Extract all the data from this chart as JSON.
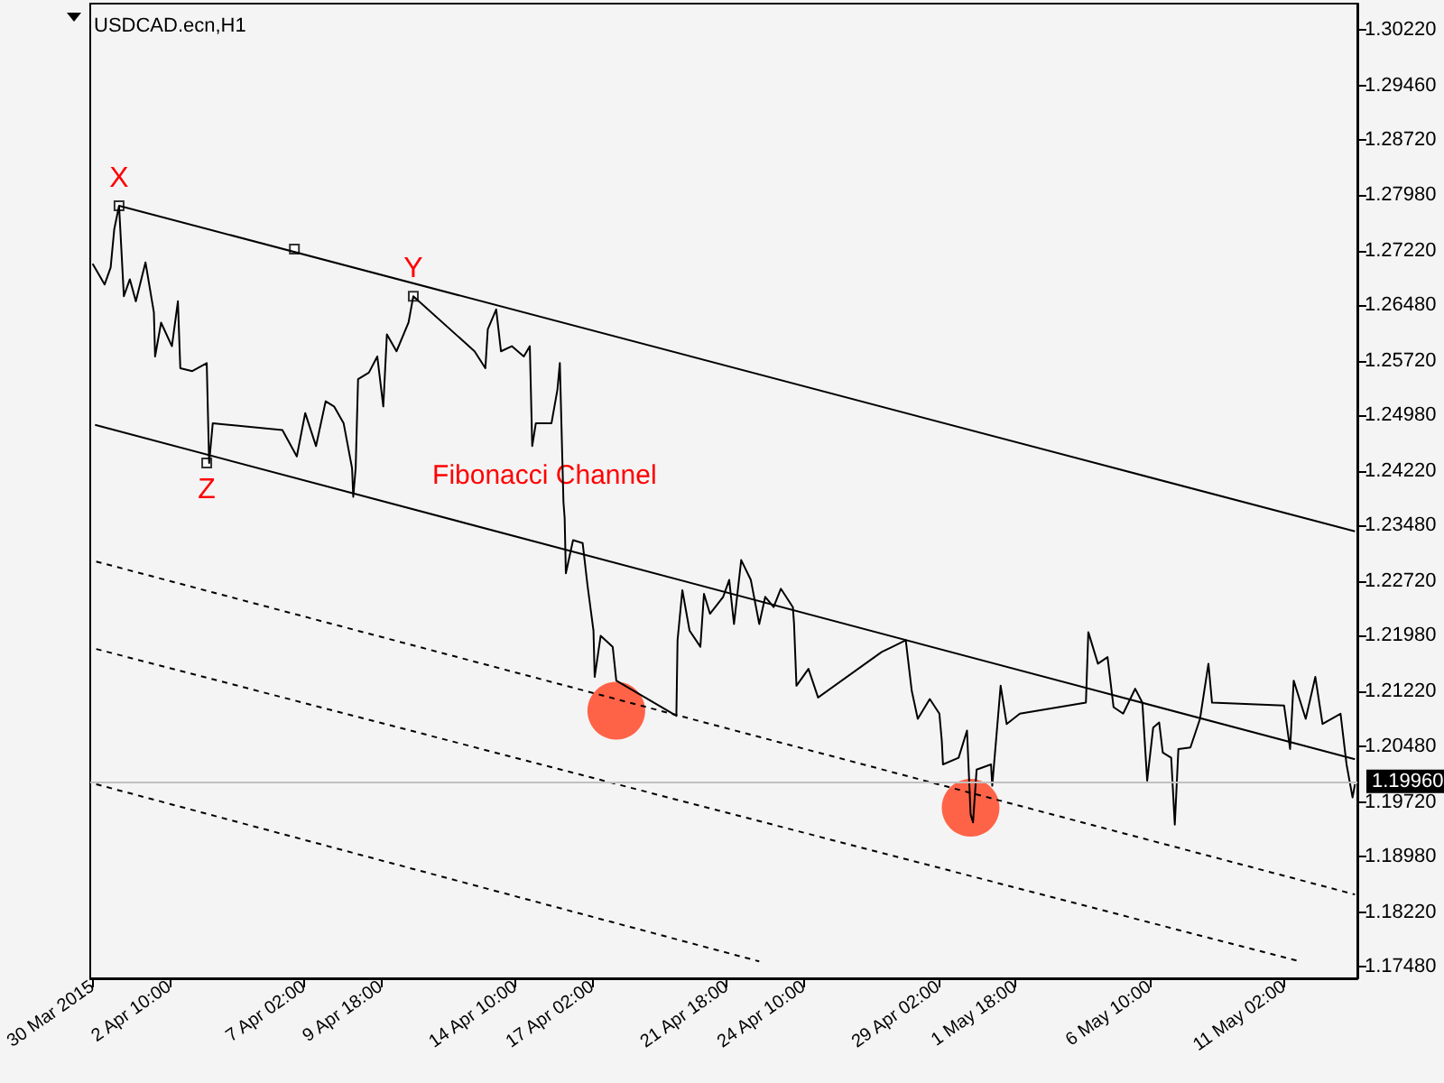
{
  "chart_data": {
    "type": "line",
    "title": "USDCAD.ecn,H1",
    "marker": "none",
    "grid": false,
    "xlim": [
      "2015-03-30T16:00",
      "2015-05-13T15:00"
    ],
    "xticks": [
      {
        "value": "2015-03-30T18:00",
        "label": "30 Mar 2015"
      },
      {
        "value": "2015-04-02T10:00",
        "label": "2 Apr 10:00"
      },
      {
        "value": "2015-04-07T02:00",
        "label": "7 Apr 02:00"
      },
      {
        "value": "2015-04-09T18:00",
        "label": "9 Apr 18:00"
      },
      {
        "value": "2015-04-14T10:00",
        "label": "14 Apr 10:00"
      },
      {
        "value": "2015-04-17T02:00",
        "label": "17 Apr 02:00"
      },
      {
        "value": "2015-04-21T18:00",
        "label": "21 Apr 18:00"
      },
      {
        "value": "2015-04-24T10:00",
        "label": "24 Apr 10:00"
      },
      {
        "value": "2015-04-29T02:00",
        "label": "29 Apr 02:00"
      },
      {
        "value": "2015-05-01T18:00",
        "label": "1 May 18:00"
      },
      {
        "value": "2015-05-06T10:00",
        "label": "6 May 10:00"
      },
      {
        "value": "2015-05-11T02:00",
        "label": "11 May 02:00"
      }
    ],
    "ylim": [
      1.1732,
      1.3058
    ],
    "yticks": [
      {
        "value": 1.3022,
        "label": "1.30220"
      },
      {
        "value": 1.2946,
        "label": "1.29460"
      },
      {
        "value": 1.2872,
        "label": "1.28720"
      },
      {
        "value": 1.2798,
        "label": "1.27980"
      },
      {
        "value": 1.2722,
        "label": "1.27220"
      },
      {
        "value": 1.2648,
        "label": "1.26480"
      },
      {
        "value": 1.2572,
        "label": "1.25720"
      },
      {
        "value": 1.2498,
        "label": "1.24980"
      },
      {
        "value": 1.2422,
        "label": "1.24220"
      },
      {
        "value": 1.2348,
        "label": "1.23480"
      },
      {
        "value": 1.2272,
        "label": "1.22720"
      },
      {
        "value": 1.2198,
        "label": "1.21980"
      },
      {
        "value": 1.2122,
        "label": "1.21220"
      },
      {
        "value": 1.2048,
        "label": "1.20480"
      },
      {
        "value": 1.1972,
        "label": "1.19720"
      },
      {
        "value": 1.1898,
        "label": "1.18980"
      },
      {
        "value": 1.1822,
        "label": "1.18220"
      },
      {
        "value": 1.1748,
        "label": "1.17480"
      }
    ],
    "ref_lines": [
      {
        "axis": "y",
        "value": 1.1996,
        "label": "1.19960",
        "color": "#c0c0c0"
      }
    ],
    "annotations": [
      {
        "text": "X",
        "x": "2015-03-31T16:00",
        "y": 1.2783
      },
      {
        "text": "Y",
        "x": "2015-04-10T21:00",
        "y": 1.266
      },
      {
        "text": "Z",
        "x": "2015-04-03T17:00",
        "y": 1.2433
      },
      "Fibonacci Channel"
    ],
    "series": [
      {
        "type": "line",
        "color": "#000000",
        "x": [
          "2015-03-30T18:00",
          "2015-03-31T04:00",
          "2015-03-31T09:00",
          "2015-03-31T12:00",
          "2015-03-31T16:00",
          "2015-03-31T20:00",
          "2015-04-01T01:00",
          "2015-04-01T06:00",
          "2015-04-01T14:00",
          "2015-04-01T21:00",
          "2015-04-01T22:00",
          "2015-04-02T03:00",
          "2015-04-02T12:00",
          "2015-04-02T17:00",
          "2015-04-02T19:00",
          "2015-04-03T05:00",
          "2015-04-03T17:00",
          "2015-04-03T19:00",
          "2015-04-03T22:00",
          "2015-04-06T08:00",
          "2015-04-06T20:00",
          "2015-04-07T03:00",
          "2015-04-07T12:00",
          "2015-04-07T20:00",
          "2015-04-08T03:00",
          "2015-04-08T11:00",
          "2015-04-08T18:00",
          "2015-04-08T19:00",
          "2015-04-08T21:00",
          "2015-04-08T23:00",
          "2015-04-09T08:00",
          "2015-04-09T15:00",
          "2015-04-09T20:00",
          "2015-04-09T23:00",
          "2015-04-10T07:00",
          "2015-04-10T17:00",
          "2015-04-10T21:00",
          "2015-04-13T00:00",
          "2015-04-13T09:00",
          "2015-04-13T11:00",
          "2015-04-13T18:00",
          "2015-04-13T22:00",
          "2015-04-14T07:00",
          "2015-04-14T17:00",
          "2015-04-14T22:00",
          "2015-04-15T00:00",
          "2015-04-15T03:00",
          "2015-04-15T16:00",
          "2015-04-15T21:00",
          "2015-04-15T23:00",
          "2015-04-16T02:00",
          "2015-04-16T03:00",
          "2015-04-16T04:00",
          "2015-04-16T10:00",
          "2015-04-16T18:00",
          "2015-04-16T22:00",
          "2015-04-17T03:00",
          "2015-04-17T04:00",
          "2015-04-17T09:00",
          "2015-04-17T19:00",
          "2015-04-17T22:00",
          "2015-04-20T00:00",
          "2015-04-20T01:00",
          "2015-04-20T05:00",
          "2015-04-20T11:00",
          "2015-04-20T20:00",
          "2015-04-20T23:00",
          "2015-04-21T04:00",
          "2015-04-21T15:00",
          "2015-04-21T20:00",
          "2015-04-22T00:00",
          "2015-04-22T06:00",
          "2015-04-22T14:00",
          "2015-04-22T21:00",
          "2015-04-23T02:00",
          "2015-04-23T09:00",
          "2015-04-23T15:00",
          "2015-04-24T01:00",
          "2015-04-24T02:00",
          "2015-04-24T04:00",
          "2015-04-24T14:00",
          "2015-04-24T22:00",
          "2015-04-27T03:00",
          "2015-04-27T12:00",
          "2015-04-27T23:00",
          "2015-04-28T04:00",
          "2015-04-28T09:00",
          "2015-04-28T19:00",
          "2015-04-29T03:00",
          "2015-04-29T05:00",
          "2015-04-29T06:00",
          "2015-04-29T19:00",
          "2015-04-30T02:00",
          "2015-04-30T05:00",
          "2015-04-30T07:00",
          "2015-04-30T10:00",
          "2015-04-30T22:00",
          "2015-04-30T23:00",
          "2015-05-01T06:00",
          "2015-05-01T11:00",
          "2015-05-01T22:00",
          "2015-05-04T05:00",
          "2015-05-04T07:00",
          "2015-05-04T15:00",
          "2015-05-04T23:00",
          "2015-05-05T04:00",
          "2015-05-05T12:00",
          "2015-05-05T22:00",
          "2015-05-06T04:00",
          "2015-05-06T08:00",
          "2015-05-06T13:00",
          "2015-05-06T18:00",
          "2015-05-06T21:00",
          "2015-05-07T04:00",
          "2015-05-07T07:00",
          "2015-05-07T10:00",
          "2015-05-07T20:00",
          "2015-05-08T04:00",
          "2015-05-08T11:00",
          "2015-05-08T14:00",
          "2015-05-11T02:00",
          "2015-05-11T07:00",
          "2015-05-11T10:00",
          "2015-05-11T20:00",
          "2015-05-12T04:00",
          "2015-05-12T10:00",
          "2015-05-13T01:00",
          "2015-05-13T06:00",
          "2015-05-13T11:00",
          "2015-05-13T13:00"
        ],
        "values": [
          1.2704,
          1.2676,
          1.2699,
          1.2751,
          1.2783,
          1.266,
          1.2683,
          1.2653,
          1.2706,
          1.2638,
          1.2578,
          1.2624,
          1.2592,
          1.2653,
          1.2562,
          1.2558,
          1.2569,
          1.2433,
          1.2487,
          1.2478,
          1.2442,
          1.2501,
          1.2456,
          1.2517,
          1.251,
          1.2487,
          1.2426,
          1.2387,
          1.2426,
          1.2547,
          1.2556,
          1.2578,
          1.251,
          1.2608,
          1.2585,
          1.2624,
          1.266,
          1.2585,
          1.2562,
          1.2615,
          1.2642,
          1.2585,
          1.2592,
          1.2578,
          1.2592,
          1.2456,
          1.2487,
          1.2487,
          1.2533,
          1.2569,
          1.238,
          1.2358,
          1.2283,
          1.2328,
          1.2324,
          1.2267,
          1.2205,
          1.2142,
          1.2198,
          1.2183,
          1.2137,
          1.2089,
          1.2192,
          1.226,
          1.2205,
          1.2183,
          1.2255,
          1.2228,
          1.2251,
          1.2274,
          1.2214,
          1.2301,
          1.2274,
          1.2214,
          1.2251,
          1.2237,
          1.2262,
          1.2237,
          1.2214,
          1.213,
          1.2153,
          1.2114,
          1.2176,
          1.2183,
          1.2192,
          1.2123,
          1.2085,
          1.2112,
          1.2092,
          1.2055,
          1.2023,
          1.2032,
          1.2069,
          1.1955,
          1.1944,
          1.2016,
          1.2023,
          1.1994,
          1.213,
          1.2078,
          1.2092,
          1.2107,
          1.2203,
          1.216,
          1.2169,
          1.2101,
          1.2092,
          1.2126,
          1.2107,
          1.2001,
          1.2073,
          1.208,
          1.2039,
          1.2032,
          1.1941,
          1.2044,
          1.2046,
          1.2085,
          1.216,
          1.2107,
          1.2103,
          1.2044,
          1.2137,
          1.2085,
          1.2142,
          1.2078,
          1.2092,
          1.2023,
          1.1978,
          1.1996
        ]
      },
      {
        "type": "line",
        "color": "#000000",
        "line_style": "solid",
        "x": [
          "2015-03-31T16:00",
          "2015-05-13T13:00"
        ],
        "values": [
          1.2783,
          1.234
        ]
      },
      {
        "type": "line",
        "color": "#000000",
        "line_style": "solid",
        "x": [
          "2015-03-30T20:00",
          "2015-05-13T13:00"
        ],
        "values": [
          1.2485,
          1.203
        ]
      },
      {
        "type": "line",
        "color": "#000000",
        "line_style": "dashed",
        "x": [
          "2015-03-30T21:00",
          "2015-05-13T13:00"
        ],
        "values": [
          1.2299,
          1.1846
        ]
      },
      {
        "type": "line",
        "color": "#000000",
        "line_style": "dashed",
        "x": [
          "2015-03-30T21:00",
          "2015-05-11T15:00"
        ],
        "values": [
          1.218,
          1.1755
        ]
      },
      {
        "type": "line",
        "color": "#000000",
        "line_style": "dashed",
        "x": [
          "2015-03-30T21:00",
          "2015-04-22T21:00"
        ],
        "values": [
          1.1996,
          1.1755
        ]
      },
      {
        "type": "scatter",
        "color": "#000000",
        "marker": "square",
        "x": [
          "2015-03-31T16:00",
          "2015-04-06T18:00",
          "2015-04-10T21:00",
          "2015-04-03T17:00"
        ],
        "values": [
          1.2783,
          1.2724,
          1.266,
          1.2433
        ]
      },
      {
        "type": "bubble",
        "color": "#ff6347",
        "marker": "circle",
        "x": [
          "2015-04-17T22:00",
          "2015-04-30T05:00"
        ],
        "values": [
          1.2096,
          1.1964
        ],
        "sizes": [
          1,
          1
        ]
      }
    ]
  }
}
